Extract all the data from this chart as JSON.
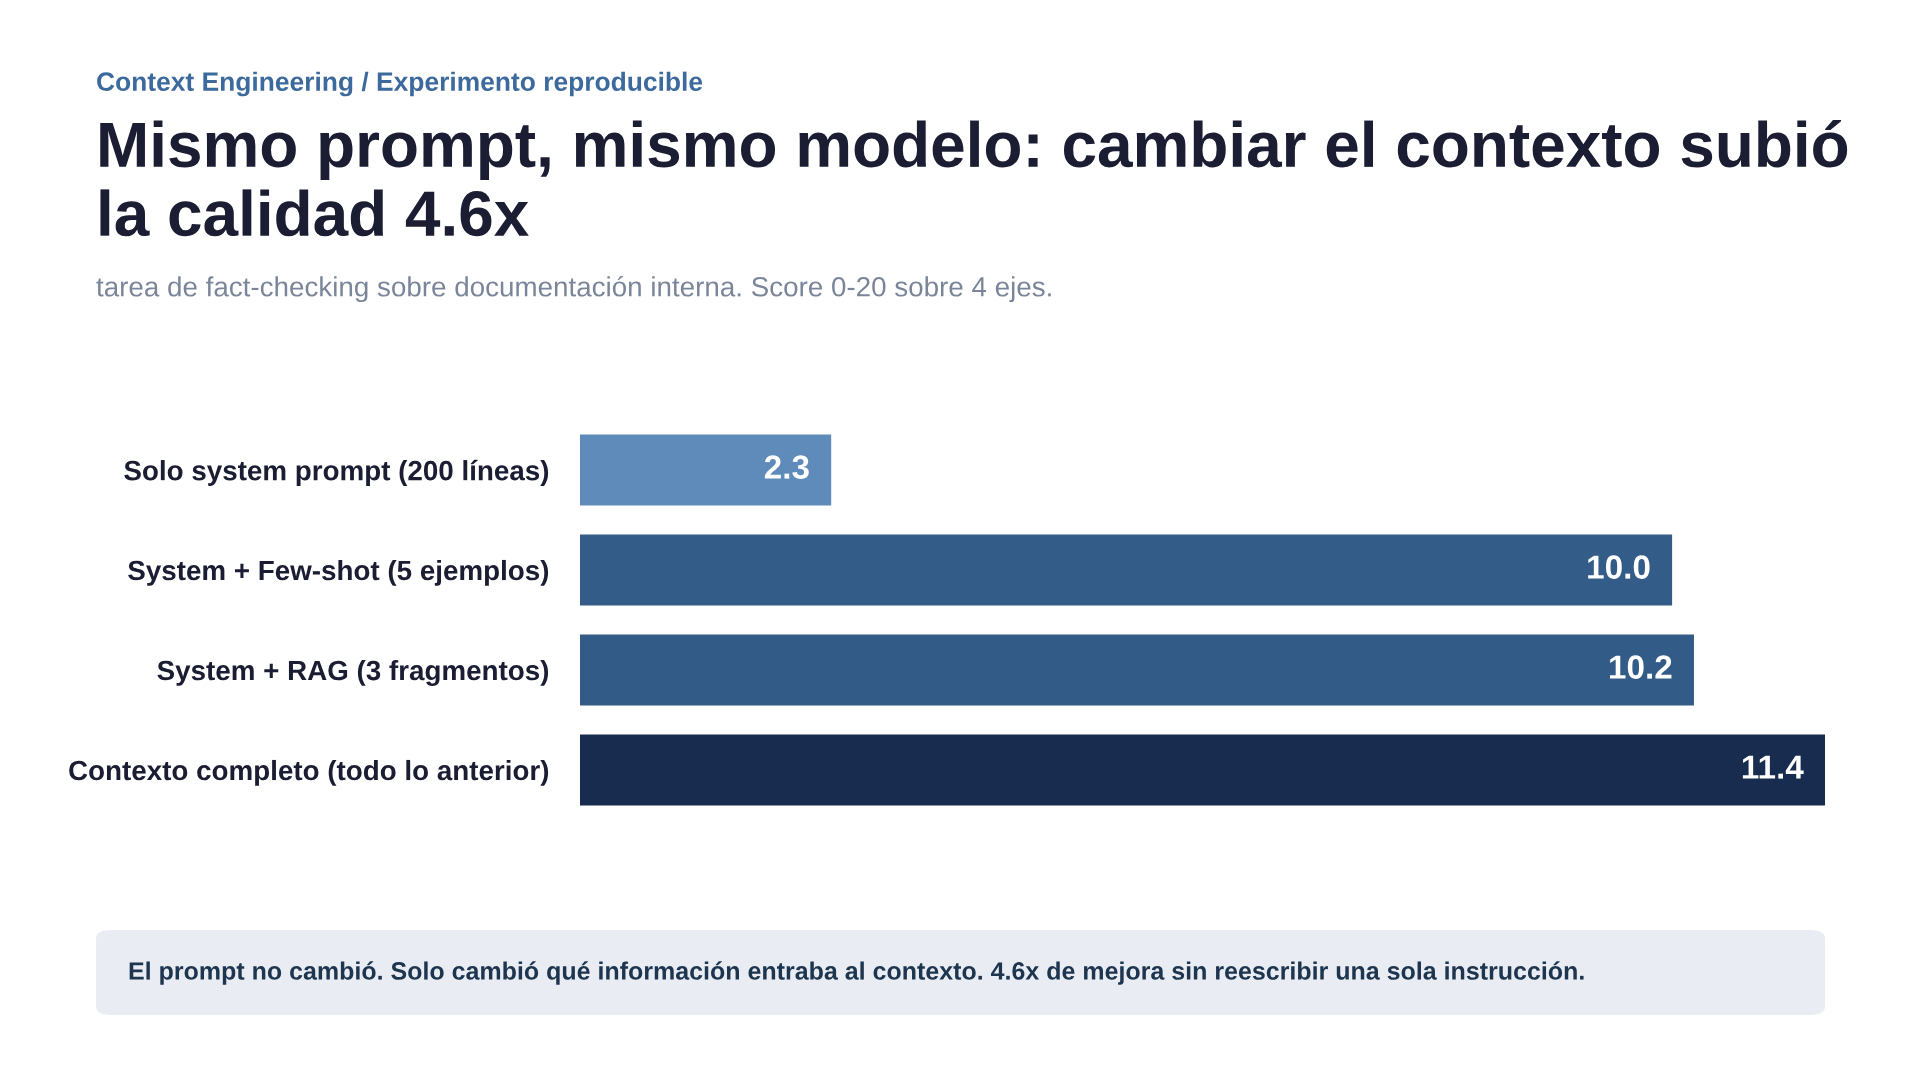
{
  "chart_data": {
    "type": "bar",
    "orientation": "horizontal",
    "title": "Mismo prompt, mismo modelo: cambiar el contexto subió la calidad 4.6x",
    "subtitle": "tarea de fact-checking sobre documentación interna. Score 0-20 sobre 4 ejes.",
    "categories": [
      "Solo system prompt (200 líneas)",
      "System + Few-shot (5 ejemplos)",
      "System + RAG (3 fragmentos)",
      "Contexto completo (todo lo anterior)"
    ],
    "values": [
      2.3,
      10.0,
      10.2,
      11.4
    ],
    "colors": [
      "#5f8bba",
      "#345c89",
      "#335b88",
      "#172c4e"
    ],
    "value_labels": [
      "2.3",
      "10.0",
      "10.2",
      "11.4"
    ],
    "annotations": [
      "Context Engineering / Experimento reproducible",
      "El prompt no cambió. Solo cambió qué información entraba al contexto. 4.6x de mejora sin reescribir una sola instrucción."
    ],
    "grid": false,
    "legend": false
  }
}
